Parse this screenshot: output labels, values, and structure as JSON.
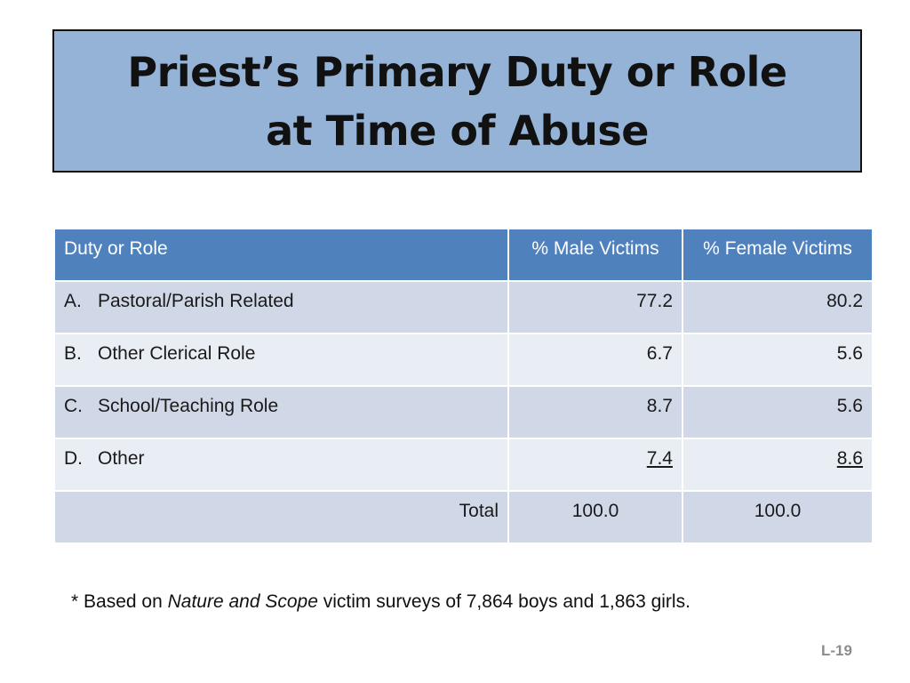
{
  "title": {
    "line1": "Priest’s Primary Duty or Role",
    "line2": "at Time of Abuse"
  },
  "table": {
    "headers": [
      "Duty or Role",
      "% Male Victims",
      "% Female Victims"
    ],
    "rows": [
      {
        "letter": "A.",
        "label": "Pastoral/Parish Related",
        "male": "77.2",
        "female": "80.2"
      },
      {
        "letter": "B.",
        "label": "Other Clerical Role",
        "male": "6.7",
        "female": "5.6"
      },
      {
        "letter": "C.",
        "label": "School/Teaching Role",
        "male": "8.7",
        "female": "5.6"
      },
      {
        "letter": "D.",
        "label": "Other",
        "male": "7.4",
        "female": "8.6"
      }
    ],
    "total": {
      "label": "Total",
      "male": "100.0",
      "female": "100.0"
    }
  },
  "footnote": {
    "prefix": "* Based on ",
    "italic": "Nature and Scope",
    "suffix": " victim surveys of 7,864 boys and 1,863 girls."
  },
  "slide_number": "L-19",
  "colors": {
    "title_bg": "#95b3d7",
    "header_bg": "#4f81bd",
    "row_odd": "#d0d8e8",
    "row_even": "#e9edf4"
  }
}
